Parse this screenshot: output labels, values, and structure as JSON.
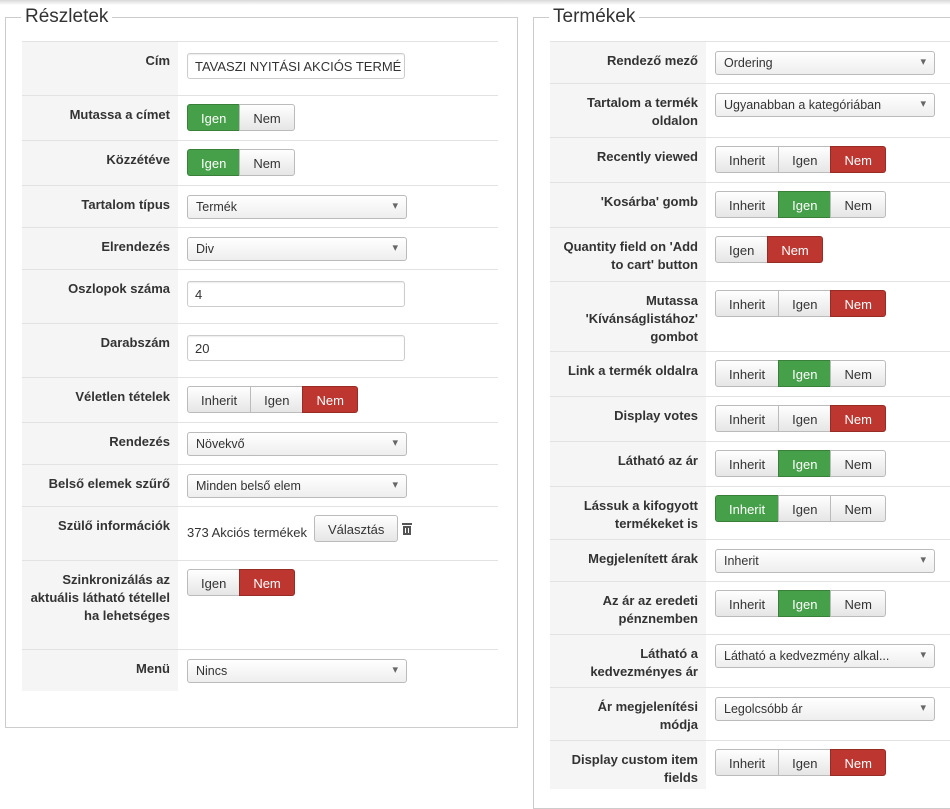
{
  "left": {
    "title": "Részletek",
    "rows": [
      {
        "label": "Cím",
        "input": "TAVASZI NYITÁSI AKCIÓS TERMÉ"
      },
      {
        "label": "Mutassa a címet",
        "options": [
          {
            "label": "Igen",
            "color": "#46a049"
          },
          {
            "label": "Nem"
          }
        ]
      },
      {
        "label": "Közzétéve",
        "options": [
          {
            "label": "Igen",
            "color": "#46a049"
          },
          {
            "label": "Nem"
          }
        ]
      },
      {
        "label": "Tartalom típus",
        "select": "Termék"
      },
      {
        "label": "Elrendezés",
        "select": "Div"
      },
      {
        "label": "Oszlopok száma",
        "input": "4"
      },
      {
        "label": "Darabszám",
        "input": "20"
      },
      {
        "label": "Véletlen tételek",
        "options": [
          {
            "label": "Inherit"
          },
          {
            "label": "Igen"
          },
          {
            "label": "Nem",
            "color": "#bd362f"
          }
        ]
      },
      {
        "label": "Rendezés",
        "select": "Növekvő"
      },
      {
        "label": "Belső elemek szűrő",
        "select": "Minden belső elem"
      },
      {
        "label": "Szülő információk",
        "text": "373 Akciós termékek",
        "button": "Választás"
      },
      {
        "label": "Szinkronizálás az aktuális látható tétellel ha lehetséges",
        "options": [
          {
            "label": "Igen"
          },
          {
            "label": "Nem",
            "color": "#bd362f"
          }
        ]
      },
      {
        "label": "Menü",
        "select": "Nincs"
      }
    ]
  },
  "right": {
    "title": "Termékek",
    "rows": [
      {
        "label": "Rendező mező",
        "select": "Ordering"
      },
      {
        "label": "Tartalom a termék oldalon",
        "select": "Ugyanabban a kategóriában"
      },
      {
        "label": "Recently viewed",
        "options": [
          {
            "label": "Inherit"
          },
          {
            "label": "Igen"
          },
          {
            "label": "Nem",
            "color": "#bd362f"
          }
        ]
      },
      {
        "label": "'Kosárba' gomb",
        "options": [
          {
            "label": "Inherit"
          },
          {
            "label": "Igen",
            "color": "#46a049"
          },
          {
            "label": "Nem"
          }
        ]
      },
      {
        "label": "Quantity field on 'Add to cart' button",
        "options": [
          {
            "label": "Igen"
          },
          {
            "label": "Nem",
            "color": "#bd362f"
          }
        ]
      },
      {
        "label": "Mutassa 'Kívánságlistához' gombot",
        "options": [
          {
            "label": "Inherit"
          },
          {
            "label": "Igen"
          },
          {
            "label": "Nem",
            "color": "#bd362f"
          }
        ]
      },
      {
        "label": "Link a termék oldalra",
        "options": [
          {
            "label": "Inherit"
          },
          {
            "label": "Igen",
            "color": "#46a049"
          },
          {
            "label": "Nem"
          }
        ]
      },
      {
        "label": "Display votes",
        "options": [
          {
            "label": "Inherit"
          },
          {
            "label": "Igen"
          },
          {
            "label": "Nem",
            "color": "#bd362f"
          }
        ]
      },
      {
        "label": "Látható az ár",
        "options": [
          {
            "label": "Inherit"
          },
          {
            "label": "Igen",
            "color": "#46a049"
          },
          {
            "label": "Nem"
          }
        ]
      },
      {
        "label": "Lássuk a kifogyott termékeket is",
        "options": [
          {
            "label": "Inherit",
            "color": "#46a049"
          },
          {
            "label": "Igen"
          },
          {
            "label": "Nem"
          }
        ]
      },
      {
        "label": "Megjelenített árak",
        "select": "Inherit"
      },
      {
        "label": "Az ár az eredeti pénznemben",
        "options": [
          {
            "label": "Inherit"
          },
          {
            "label": "Igen",
            "color": "#46a049"
          },
          {
            "label": "Nem"
          }
        ]
      },
      {
        "label": "Látható a kedvezményes ár",
        "select": "Látható a kedvezmény alkal..."
      },
      {
        "label": "Ár megjelenítési módja",
        "select": "Legolcsóbb ár"
      },
      {
        "label": "Display custom item fields",
        "options": [
          {
            "label": "Inherit"
          },
          {
            "label": "Igen"
          },
          {
            "label": "Nem",
            "color": "#bd362f"
          }
        ]
      }
    ]
  }
}
